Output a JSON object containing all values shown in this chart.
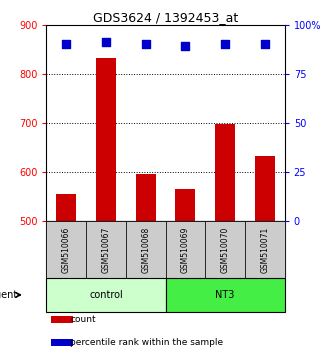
{
  "title": "GDS3624 / 1392453_at",
  "samples": [
    "GSM510066",
    "GSM510067",
    "GSM510068",
    "GSM510069",
    "GSM510070",
    "GSM510071"
  ],
  "counts": [
    555,
    833,
    597,
    566,
    697,
    633
  ],
  "percentiles": [
    90,
    91,
    90,
    89,
    90,
    90
  ],
  "ylim_left": [
    500,
    900
  ],
  "ylim_right": [
    0,
    100
  ],
  "yticks_left": [
    500,
    600,
    700,
    800,
    900
  ],
  "yticks_right": [
    0,
    25,
    50,
    75,
    100
  ],
  "yticklabels_right": [
    "0",
    "25",
    "50",
    "75",
    "100%"
  ],
  "bar_color": "#cc0000",
  "scatter_color": "#0000cc",
  "bar_width": 0.5,
  "groups": [
    {
      "label": "control",
      "indices": [
        0,
        1,
        2
      ],
      "color": "#ccffcc"
    },
    {
      "label": "NT3",
      "indices": [
        3,
        4,
        5
      ],
      "color": "#44ee44"
    }
  ],
  "agent_label": "agent",
  "legend_items": [
    {
      "label": "count",
      "color": "#cc0000"
    },
    {
      "label": "percentile rank within the sample",
      "color": "#0000cc"
    }
  ],
  "background_color": "#ffffff",
  "tick_label_area_color": "#cccccc",
  "scatter_size": 40
}
